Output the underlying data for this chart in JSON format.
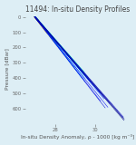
{
  "title": "11494: In-situ Density Profiles",
  "xlabel": "In-situ Density Anomaly, ρ - 1000 [kg m⁻³]",
  "ylabel": "Pressure [dBar]",
  "xlim": [
    26.5,
    31.8
  ],
  "ylim": [
    700,
    -20
  ],
  "xticks": [
    28,
    30
  ],
  "yticks": [
    0,
    100,
    200,
    300,
    400,
    500,
    600
  ],
  "background_color": "#ddeef5",
  "title_fontsize": 5.5,
  "label_fontsize": 4.2,
  "tick_fontsize": 3.8,
  "n_profiles": 50,
  "pressure_max": 680,
  "density_at_surface": 27.0,
  "density_slope": 0.0063,
  "density_noise": 0.05,
  "surface_density_spread": 0.15
}
